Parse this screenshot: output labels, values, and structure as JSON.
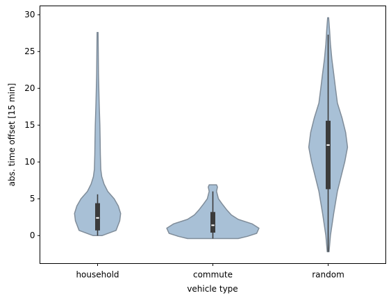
{
  "chart_data": {
    "type": "violin",
    "xlabel": "vehicle type",
    "ylabel": "abs. time offset [15 min]",
    "ylim": [
      -3.8,
      31.2
    ],
    "yticks": [
      0,
      5,
      10,
      15,
      20,
      25,
      30
    ],
    "grid": false,
    "categories": [
      "household",
      "commute",
      "random"
    ],
    "violins": [
      {
        "category": "household",
        "y_min": 0,
        "y_max": 27.6,
        "quartiles": [
          0.7,
          2.4,
          4.4
        ],
        "whiskers": [
          0,
          5.6
        ],
        "density_profile": [
          [
            0,
            0.1
          ],
          [
            0.7,
            0.4
          ],
          [
            2.0,
            0.48
          ],
          [
            3.0,
            0.5
          ],
          [
            4.0,
            0.45
          ],
          [
            5.0,
            0.36
          ],
          [
            6.0,
            0.22
          ],
          [
            7.0,
            0.14
          ],
          [
            8.0,
            0.09
          ],
          [
            9.0,
            0.07
          ],
          [
            11.0,
            0.06
          ],
          [
            13.0,
            0.055
          ],
          [
            15.0,
            0.05
          ],
          [
            18.0,
            0.035
          ],
          [
            22.0,
            0.02
          ],
          [
            25.0,
            0.015
          ],
          [
            27.6,
            0.01
          ]
        ]
      },
      {
        "category": "commute",
        "y_min": -0.4,
        "y_max": 6.9,
        "quartiles": [
          0.4,
          1.4,
          3.2
        ],
        "whiskers": [
          -0.4,
          6.0
        ],
        "density_profile": [
          [
            -0.4,
            0.55
          ],
          [
            -0.1,
            0.75
          ],
          [
            0.3,
            0.95
          ],
          [
            1.0,
            1.0
          ],
          [
            1.6,
            0.85
          ],
          [
            2.2,
            0.55
          ],
          [
            2.8,
            0.4
          ],
          [
            3.5,
            0.3
          ],
          [
            4.3,
            0.2
          ],
          [
            5.0,
            0.12
          ],
          [
            6.0,
            0.08
          ],
          [
            6.6,
            0.1
          ],
          [
            6.9,
            0.08
          ]
        ]
      },
      {
        "category": "random",
        "y_min": -2.2,
        "y_max": 29.6,
        "quartiles": [
          6.3,
          12.3,
          15.6
        ],
        "whiskers": [
          -2.2,
          27.3
        ],
        "density_profile": [
          [
            -2.2,
            0.02
          ],
          [
            0,
            0.05
          ],
          [
            3.0,
            0.12
          ],
          [
            6.0,
            0.2
          ],
          [
            8.5,
            0.3
          ],
          [
            10.0,
            0.36
          ],
          [
            12.0,
            0.42
          ],
          [
            14.0,
            0.38
          ],
          [
            16.0,
            0.3
          ],
          [
            18.0,
            0.2
          ],
          [
            20.0,
            0.16
          ],
          [
            22.0,
            0.12
          ],
          [
            24.0,
            0.08
          ],
          [
            26.0,
            0.05
          ],
          [
            28.0,
            0.03
          ],
          [
            29.6,
            0.01
          ]
        ]
      }
    ],
    "colors": {
      "violin_fill": "#a8c0d6",
      "violin_edge": "#7f8c99",
      "box": "#3b3b3b",
      "median": "#ffffff"
    }
  }
}
